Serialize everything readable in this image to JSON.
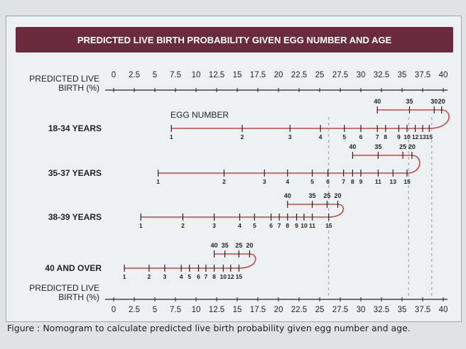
{
  "chart_data": {
    "type": "nomogram",
    "title": "PREDICTED LIVE BIRTH PROBABILITY GIVEN EGG NUMBER AND AGE",
    "axis_label": "PREDICTED LIVE BIRTH (%)",
    "axis_label_top": [
      "PREDICTED LIVE",
      "BIRTH (%)"
    ],
    "axis_label_bottom": [
      "PREDICTED LIVE",
      "BIRTH (%)"
    ],
    "xlim": [
      0,
      40
    ],
    "ticks": [
      "0",
      "2.5",
      "5",
      "7.5",
      "10",
      "12.5",
      "15",
      "17.5",
      "20",
      "22.5",
      "25",
      "27.5",
      "30",
      "32.5",
      "35",
      "37.5",
      "40"
    ],
    "egg_number_label": "EGG NUMBER",
    "line_color": "#c8483f",
    "rows": [
      {
        "label": "18-34 YEARS",
        "egg_ticks": [
          [
            "1",
            7.0
          ],
          [
            "2",
            15.6
          ],
          [
            "3",
            21.4
          ],
          [
            "4",
            25.1
          ],
          [
            "5",
            28.0
          ],
          [
            "6",
            30.0
          ],
          [
            "7",
            32.0
          ],
          [
            "8",
            33.0
          ],
          [
            "9",
            34.6
          ],
          [
            "10",
            35.6
          ],
          [
            "12",
            36.6
          ],
          [
            "13",
            37.5
          ],
          [
            "15",
            38.3
          ]
        ],
        "age_ticks": [
          [
            "40",
            32.0
          ],
          [
            "35",
            35.9
          ],
          [
            "30",
            38.9
          ],
          [
            "20",
            39.8
          ]
        ]
      },
      {
        "label": "35-37 YEARS",
        "egg_ticks": [
          [
            "1",
            5.4
          ],
          [
            "2",
            13.4
          ],
          [
            "3",
            18.3
          ],
          [
            "4",
            21.1
          ],
          [
            "5",
            24.1
          ],
          [
            "6",
            26.0
          ],
          [
            "7",
            27.9
          ],
          [
            "8",
            29.0
          ],
          [
            "9",
            30.0
          ],
          [
            "11",
            32.1
          ],
          [
            "13",
            33.9
          ],
          [
            "15",
            35.6
          ]
        ],
        "age_ticks": [
          [
            "40",
            29.0
          ],
          [
            "35",
            32.1
          ],
          [
            "25",
            35.1
          ],
          [
            "20",
            36.2
          ]
        ]
      },
      {
        "label": "38-39 YEARS",
        "egg_ticks": [
          [
            "1",
            3.3
          ],
          [
            "2",
            8.4
          ],
          [
            "3",
            12.2
          ],
          [
            "4",
            15.3
          ],
          [
            "5",
            17.1
          ],
          [
            "6",
            19.1
          ],
          [
            "7",
            20.1
          ],
          [
            "8",
            21.1
          ],
          [
            "9",
            22.2
          ],
          [
            "10",
            23.1
          ],
          [
            "11",
            24.1
          ],
          [
            "15",
            26.1
          ]
        ],
        "age_ticks": [
          [
            "40",
            21.1
          ],
          [
            "35",
            24.1
          ],
          [
            "25",
            25.9
          ],
          [
            "20",
            27.2
          ]
        ]
      },
      {
        "label": "40 AND OVER",
        "egg_ticks": [
          [
            "1",
            1.3
          ],
          [
            "2",
            4.3
          ],
          [
            "3",
            6.2
          ],
          [
            "4",
            8.2
          ],
          [
            "5",
            9.2
          ],
          [
            "6",
            10.3
          ],
          [
            "7",
            11.2
          ],
          [
            "8",
            12.2
          ],
          [
            "10",
            13.3
          ],
          [
            "12",
            14.2
          ],
          [
            "15",
            15.2
          ]
        ],
        "age_ticks": [
          [
            "40",
            12.2
          ],
          [
            "35",
            13.5
          ],
          [
            "25",
            15.2
          ],
          [
            "20",
            16.5
          ]
        ]
      }
    ],
    "reference_lines": [
      26.1,
      35.8,
      38.6
    ]
  },
  "caption": "Figure : Nomogram to calculate predicted live birth probability given egg number and age."
}
